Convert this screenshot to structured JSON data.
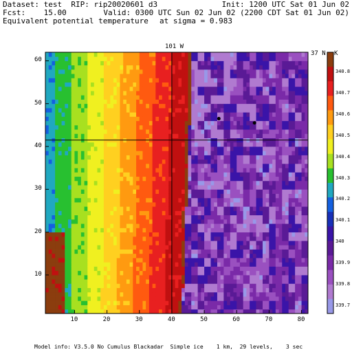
{
  "header": {
    "dataset_line": "Dataset: test  RIP: rip20020601 d3",
    "init_line": "Init: 1200 UTC Sat 01 Jun 02",
    "fcst_line": "Fcst:    15.00",
    "valid_line": "Valid: 0300 UTC Sun 02 Jun 02 (2200 CDT Sat 01 Jun 02)",
    "field_name": "Equivalent potential temperature",
    "sigma_label": "at sigma = 0.983"
  },
  "map_labels": {
    "meridian_label": "101 W",
    "parallel_label": "37 N",
    "units_label": "K"
  },
  "x_ticks": [
    "10",
    "20",
    "30",
    "40",
    "50",
    "60",
    "70",
    "80"
  ],
  "y_ticks": [
    "10",
    "20",
    "30",
    "40",
    "50",
    "60"
  ],
  "colorbar": {
    "labels": [
      "340.8",
      "340.7",
      "340.6",
      "340.5",
      "340.4",
      "340.3",
      "340.2",
      "340.1",
      "340",
      "339.9",
      "339.8",
      "339.7"
    ],
    "colors": [
      "#8b3d0e",
      "#c01010",
      "#e82020",
      "#ff5a10",
      "#ff9a10",
      "#ffd020",
      "#f0f020",
      "#a8e020",
      "#28c030",
      "#20a8c0",
      "#1460e0",
      "#1830b8",
      "#3a14a8",
      "#5a1a96",
      "#7a2aa8",
      "#9a50c0",
      "#b07ad0",
      "#9898e8"
    ]
  },
  "field": {
    "x_range": [
      1,
      82
    ],
    "y_range": [
      1,
      62
    ],
    "meridian_x": 40,
    "parallel_y": 41.5,
    "markers": [
      {
        "x": 54.5,
        "y": 46.5
      },
      {
        "x": 65.5,
        "y": 45.5
      }
    ]
  },
  "footer": {
    "model_info": "Model info: V3.5.0 No Cumulus Blackadar  Simple ice    1 km,  29 levels,    3 sec"
  }
}
